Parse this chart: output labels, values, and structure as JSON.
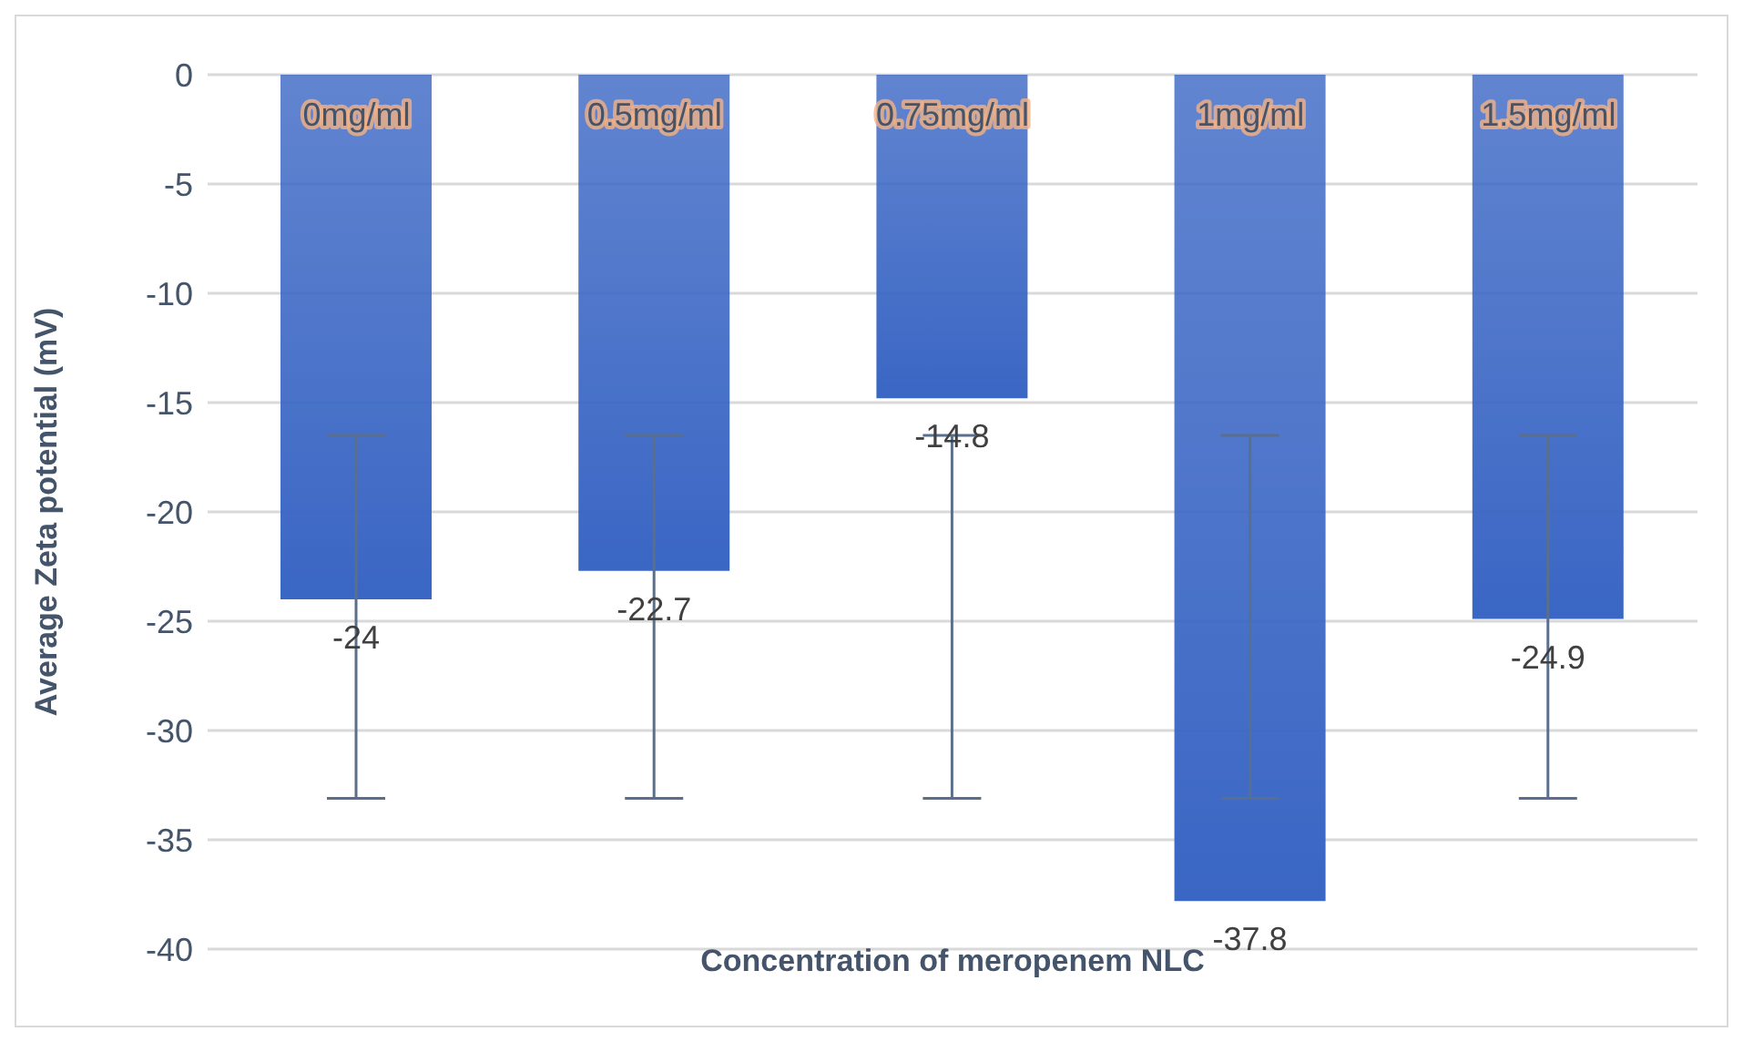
{
  "chart_data": {
    "type": "bar",
    "xlabel": "Concentration of meropenem NLC",
    "ylabel": "Average Zeta potential (mV)",
    "categories": [
      "0mg/ml",
      "0.5mg/ml",
      "0.75mg/ml",
      "1mg/ml",
      "1.5mg/ml"
    ],
    "values": [
      -24,
      -22.7,
      -14.8,
      -37.8,
      -24.9
    ],
    "errors": [
      [
        -33.1,
        -16.5
      ],
      [
        -33.1,
        -16.5
      ],
      [
        -33.1,
        -16.5
      ],
      [
        -33.1,
        -16.5
      ],
      [
        -33.1,
        -16.5
      ]
    ],
    "color": "#3a66c4",
    "ylim": [
      -40,
      0
    ],
    "yticks": [
      -40,
      -35,
      -30,
      -25,
      -20,
      -15,
      -10,
      -5,
      0
    ],
    "grid": "y",
    "data_labels": true
  }
}
